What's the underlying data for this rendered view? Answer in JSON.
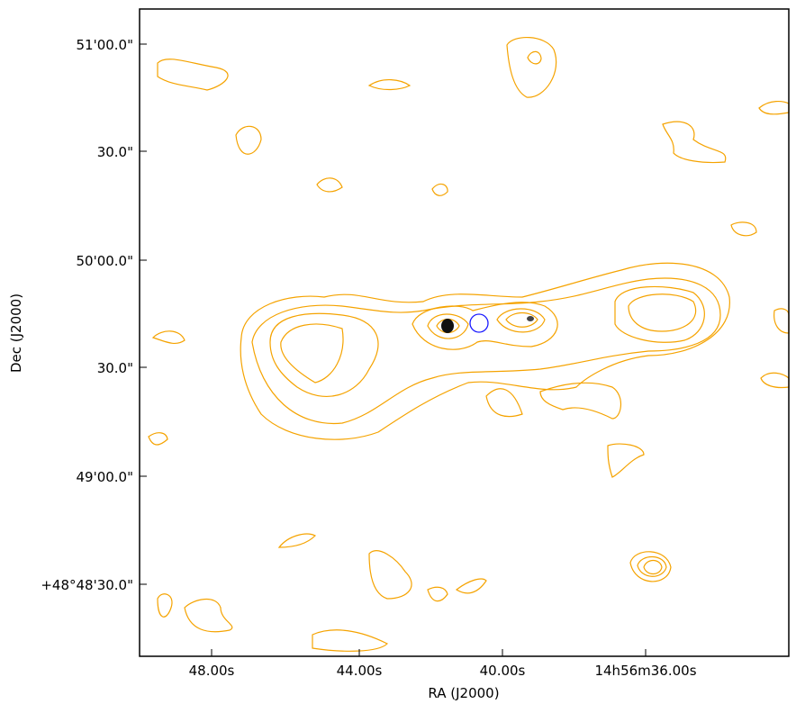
{
  "axes": {
    "x_label": "RA (J2000)",
    "y_label": "Dec (J2000)",
    "x_tick_labels": [
      "48.00s",
      "44.00s",
      "40.00s",
      "14h56m36.00s"
    ],
    "y_tick_labels": [
      "51'00.0\"",
      "30.0\"",
      "50'00.0\"",
      "30.0\"",
      "49'00.0\"",
      "+48°48'30.0\""
    ]
  }
}
